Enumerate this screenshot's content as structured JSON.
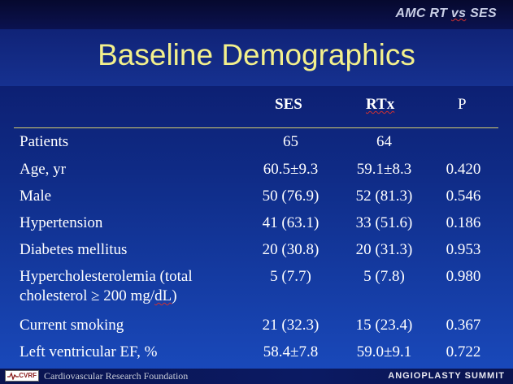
{
  "header": {
    "top_title_a": "AMC RT ",
    "top_title_vs": "vs",
    "top_title_b": " SES"
  },
  "slide": {
    "title": "Baseline Demographics"
  },
  "table": {
    "columns": [
      "SES",
      "RTx",
      "P"
    ],
    "rows": [
      {
        "label": "Patients",
        "ses": "65",
        "rtx": "64",
        "p": ""
      },
      {
        "label": "Age, yr",
        "ses": "60.5±9.3",
        "rtx": "59.1±8.3",
        "p": "0.420"
      },
      {
        "label": "Male",
        "ses": "50 (76.9)",
        "rtx": "52 (81.3)",
        "p": "0.546"
      },
      {
        "label": "Hypertension",
        "ses": "41 (63.1)",
        "rtx": "33 (51.6)",
        "p": "0.186"
      },
      {
        "label": "Diabetes mellitus",
        "ses": "20 (30.8)",
        "rtx": "20 (31.3)",
        "p": "0.953"
      },
      {
        "label_line1": "Hypercholesterolemia (total",
        "label_line2a": "cholesterol ≥ 200 mg/",
        "label_line2b": "dL",
        "label_line2c": ")",
        "ses": "5 (7.7)",
        "rtx": "5 (7.8)",
        "p": "0.980"
      },
      {
        "label": "Current smoking",
        "ses": "21 (32.3)",
        "rtx": "15 (23.4)",
        "p": "0.367"
      },
      {
        "label": "Left ventricular EF, %",
        "ses": "58.4±7.8",
        "rtx": "59.0±9.1",
        "p": "0.722"
      }
    ]
  },
  "footer": {
    "logo_text": "CVRF",
    "left": "Cardiovascular Research Foundation",
    "right": "ANGIOPLASTY SUMMIT"
  },
  "colors": {
    "title": "#f3f08c",
    "rule": "#d8d070",
    "background": "#0f2b86"
  }
}
